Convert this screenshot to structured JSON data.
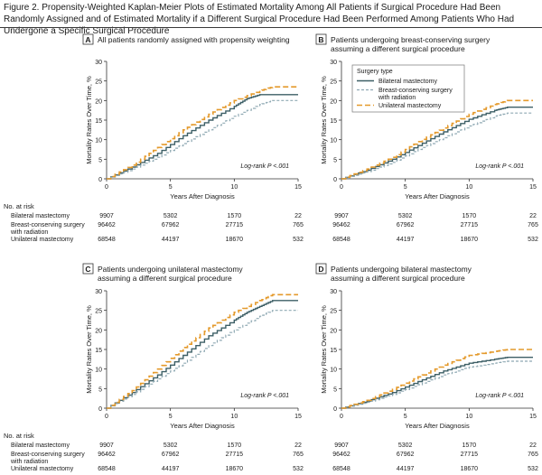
{
  "figure_title": "Figure 2. Propensity-Weighted Kaplan-Meier Plots of Estimated Mortality Among All Patients if Surgical Procedure Had Been Randomly Assigned and of Estimated Mortality if a Different Surgical Procedure Had Been Performed Among Patients Who Had Undergone a Specific Surgical Procedure",
  "legend_title": "Surgery type",
  "colors": {
    "bilateral": "#3d5f66",
    "bcs": "#8fa9b3",
    "unilateral": "#e49a2c"
  },
  "risk_header": "No. at risk",
  "risk_labels": [
    "Bilateral mastectomy",
    "Breast-conserving surgery",
    "with radiation",
    "Unilateral mastectomy"
  ],
  "chart_data": [
    {
      "panel": "A",
      "title": [
        "All patients randomly assigned with propensity weighting"
      ],
      "type": "line",
      "xlabel": "Years After Diagnosis",
      "ylabel": "Mortality Rates Over Time, %",
      "xlim": [
        0,
        15
      ],
      "ylim": [
        0,
        30
      ],
      "xticks": [
        0,
        5,
        10,
        15
      ],
      "yticks": [
        0,
        5,
        10,
        15,
        20,
        25,
        30
      ],
      "annotation": "Log-rank P <.001",
      "legend": false,
      "series": [
        {
          "name": "Bilateral mastectomy",
          "x": [
            0,
            2,
            4,
            6,
            8,
            10,
            11,
            12,
            13,
            15
          ],
          "y": [
            0,
            3,
            6.5,
            11,
            15,
            18.5,
            20.5,
            21.5,
            21.5,
            21.5
          ]
        },
        {
          "name": "Breast-conserving surgery with radiation",
          "x": [
            0,
            2,
            4,
            6,
            8,
            10,
            12,
            13,
            15
          ],
          "y": [
            0,
            2.5,
            5.5,
            9,
            12.5,
            16,
            19,
            20,
            20
          ]
        },
        {
          "name": "Unilateral mastectomy",
          "x": [
            0,
            2,
            4,
            6,
            8,
            10,
            12,
            13,
            15
          ],
          "y": [
            0,
            3.5,
            8,
            12.5,
            16.5,
            20,
            22.5,
            23.5,
            23.5
          ]
        }
      ],
      "at_risk": [
        [
          "9907",
          "5302",
          "1570",
          "22"
        ],
        [
          "96462",
          "67962",
          "27715",
          "765"
        ],
        [
          "68548",
          "44197",
          "18670",
          "532"
        ]
      ]
    },
    {
      "panel": "B",
      "title": [
        "Patients undergoing breast-conserving surgery",
        "assuming a different surgical procedure"
      ],
      "type": "line",
      "xlabel": "Years After Diagnosis",
      "ylabel": "Mortality Rates Over Time, %",
      "xlim": [
        0,
        15
      ],
      "ylim": [
        0,
        30
      ],
      "xticks": [
        0,
        5,
        10,
        15
      ],
      "yticks": [
        0,
        5,
        10,
        15,
        20,
        25,
        30
      ],
      "annotation": "Log-rank P <.001",
      "legend": true,
      "series": [
        {
          "name": "Bilateral mastectomy",
          "x": [
            0,
            2,
            4,
            6,
            8,
            10,
            12,
            13,
            15
          ],
          "y": [
            0,
            2.2,
            5,
            8.5,
            12,
            15.2,
            17.5,
            18.3,
            18.3
          ]
        },
        {
          "name": "Breast-conserving surgery with radiation",
          "x": [
            0,
            2,
            4,
            6,
            8,
            10,
            12,
            13,
            15
          ],
          "y": [
            0,
            1.8,
            4.2,
            7.5,
            10.5,
            13.5,
            16,
            16.8,
            16.8
          ]
        },
        {
          "name": "Unilateral mastectomy",
          "x": [
            0,
            2,
            4,
            6,
            8,
            10,
            12,
            13,
            15
          ],
          "y": [
            0,
            2.5,
            5.5,
            9.5,
            13,
            16.5,
            19,
            20,
            20
          ]
        }
      ],
      "at_risk": [
        [
          "9907",
          "5302",
          "1570",
          "22"
        ],
        [
          "96462",
          "67962",
          "27715",
          "765"
        ],
        [
          "68548",
          "44197",
          "18670",
          "532"
        ]
      ]
    },
    {
      "panel": "C",
      "title": [
        "Patients undergoing unilateral mastectomy",
        "assuming a different surgical procedure"
      ],
      "type": "line",
      "xlabel": "Years After Diagnosis",
      "ylabel": "Mortality Rates Over Time, %",
      "xlim": [
        0,
        15
      ],
      "ylim": [
        0,
        30
      ],
      "xticks": [
        0,
        5,
        10,
        15
      ],
      "yticks": [
        0,
        5,
        10,
        15,
        20,
        25,
        30
      ],
      "annotation": "Log-rank P <.001",
      "legend": false,
      "series": [
        {
          "name": "Bilateral mastectomy",
          "x": [
            0,
            2,
            4,
            6,
            8,
            10,
            11,
            12,
            13,
            15
          ],
          "y": [
            0,
            4,
            8.5,
            13.5,
            18.5,
            22.5,
            24.5,
            26,
            27.5,
            27.5
          ]
        },
        {
          "name": "Breast-conserving surgery with radiation",
          "x": [
            0,
            2,
            4,
            6,
            8,
            10,
            12,
            13,
            15
          ],
          "y": [
            0,
            3.5,
            7.5,
            11.5,
            16,
            20,
            23.5,
            25,
            25
          ]
        },
        {
          "name": "Unilateral mastectomy",
          "x": [
            0,
            2,
            4,
            6,
            8,
            10,
            12,
            13,
            15
          ],
          "y": [
            0,
            4.5,
            10,
            15.5,
            20.5,
            24.5,
            27.5,
            29,
            29
          ]
        }
      ],
      "at_risk": [
        [
          "9907",
          "5302",
          "1570",
          "22"
        ],
        [
          "96462",
          "67962",
          "27715",
          "765"
        ],
        [
          "68548",
          "44197",
          "18670",
          "532"
        ]
      ]
    },
    {
      "panel": "D",
      "title": [
        "Patients undergoing bilateral mastectomy",
        "assuming a different surgical procedure"
      ],
      "type": "line",
      "xlabel": "Years After Diagnosis",
      "ylabel": "Mortality Rates Over Time, %",
      "xlim": [
        0,
        15
      ],
      "ylim": [
        0,
        30
      ],
      "xticks": [
        0,
        5,
        10,
        15
      ],
      "yticks": [
        0,
        5,
        10,
        15,
        20,
        25,
        30
      ],
      "annotation": "Log-rank P <.001",
      "legend": false,
      "series": [
        {
          "name": "Bilateral mastectomy",
          "x": [
            0,
            2,
            4,
            6,
            8,
            10,
            12,
            13,
            15
          ],
          "y": [
            0,
            1.8,
            4,
            6.8,
            9.5,
            11.5,
            12.5,
            13,
            13
          ]
        },
        {
          "name": "Breast-conserving surgery with radiation",
          "x": [
            0,
            2,
            4,
            6,
            8,
            10,
            12,
            13,
            15
          ],
          "y": [
            0,
            1.5,
            3.5,
            6,
            8.5,
            10.5,
            11.5,
            12,
            12
          ]
        },
        {
          "name": "Unilateral mastectomy",
          "x": [
            0,
            2,
            4,
            6,
            8,
            10,
            12,
            13,
            15
          ],
          "y": [
            0,
            2,
            4.8,
            8,
            11,
            13.5,
            14.5,
            15,
            15
          ]
        }
      ],
      "at_risk": [
        [
          "9907",
          "5302",
          "1570",
          "22"
        ],
        [
          "96462",
          "67962",
          "27715",
          "765"
        ],
        [
          "68548",
          "44197",
          "18670",
          "532"
        ]
      ]
    }
  ]
}
